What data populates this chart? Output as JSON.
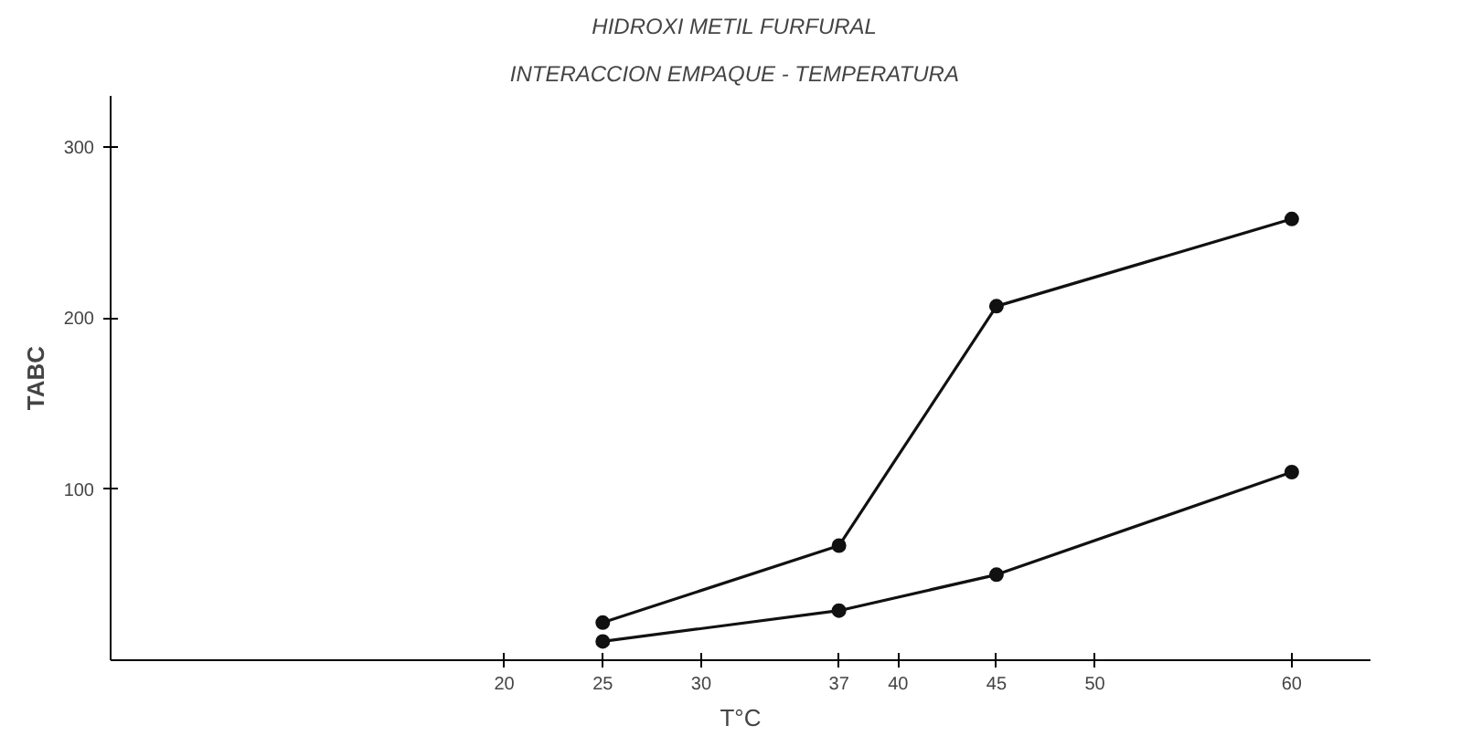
{
  "chart_data": {
    "type": "line",
    "title": "HIDROXI  METIL  FURFURAL",
    "subtitle": "INTERACCION   EMPAQUE - TEMPERATURA",
    "xlabel": "T°C",
    "ylabel": "TABC",
    "x": [
      25,
      37,
      45,
      60
    ],
    "series": [
      {
        "color": "#111111",
        "values": [
          22,
          67,
          207,
          258
        ]
      },
      {
        "color": "#111111",
        "values": [
          11,
          29,
          50,
          110
        ]
      }
    ],
    "xlim": [
      0,
      64
    ],
    "xticks": [
      20,
      25,
      30,
      37,
      40,
      45,
      50,
      60
    ],
    "ylim": [
      0,
      330
    ],
    "yticks": [
      100,
      200,
      300
    ],
    "grid": false,
    "marker": "circle",
    "line_style": "solid"
  }
}
